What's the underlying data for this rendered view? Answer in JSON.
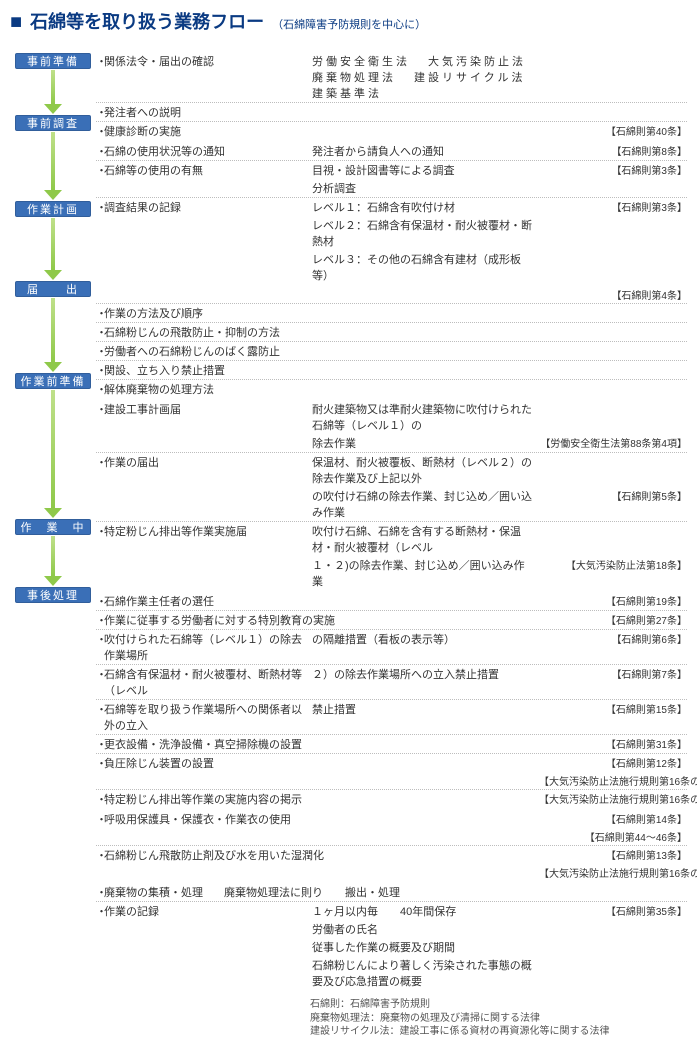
{
  "title": {
    "square": "■",
    "main": "石綿等を取り扱う業務フロー",
    "sub": "（石綿障害予防規則を中心に）"
  },
  "stages": [
    {
      "label": "事前準備",
      "color": "#3a6fb7",
      "arrow_h": 34
    },
    {
      "label": "事前調査",
      "color": "#3a6fb7",
      "arrow_h": 58
    },
    {
      "label": "作業計画",
      "color": "#3a6fb7",
      "arrow_h": 52
    },
    {
      "label": "届　　出",
      "color": "#3a6fb7",
      "arrow_h": 64
    },
    {
      "label": "作業前準備",
      "color": "#3a6fb7",
      "arrow_h": 118
    },
    {
      "label": "作　業　中",
      "color": "#3a6fb7",
      "arrow_h": 40
    },
    {
      "label": "事後処理",
      "color": "#3a6fb7",
      "arrow_h": 0
    }
  ],
  "s0": {
    "r0b": "・",
    "r0l": "関係法令・届出の確認",
    "laws": [
      "労働安全衛生法",
      "大気汚染防止法",
      "廃棄物処理法",
      "建設リサイクル法",
      "建築基準法"
    ],
    "r1b": "・",
    "r1l": "発注者への説明",
    "r2b": "・",
    "r2l": "健康診断の実施",
    "r2r": "【石綿則第40条】"
  },
  "s1": {
    "r0b": "・",
    "r0l": "石綿の使用状況等の通知",
    "r0m": "発注者から請負人への通知",
    "r0r": "【石綿則第8条】",
    "r1b": "・",
    "r1l": "石綿等の使用の有無",
    "r1m": "目視・設計図書等による調査",
    "r1r": "【石綿則第3条】",
    "r2m": "分析調査",
    "r3b": "・",
    "r3l": "調査結果の記録",
    "r3m": "レベル１：石綿含有吹付け材",
    "r3r": "【石綿則第3条】",
    "r4m": "レベル２：石綿含有保温材・耐火被覆材・断熱材",
    "r5m": "レベル３：その他の石綿含有建材（成形板等）"
  },
  "s2": {
    "r0r": "【石綿則第4条】",
    "r1b": "・",
    "r1l": "作業の方法及び順序",
    "r2b": "・",
    "r2l": "石綿粉じんの飛散防止・抑制の方法",
    "r3b": "・",
    "r3l": "労働者への石綿粉じんのばく露防止",
    "r4b": "・",
    "r4l": "関設、立ち入り禁止措置",
    "r5b": "・",
    "r5l": "解体廃棄物の処理方法"
  },
  "s3": {
    "r0b": "・",
    "r0l": "建設工事計画届",
    "r0m": "耐火建築物又は準耐火建築物に吹付けられた石綿等（レベル１）の",
    "r1m": "除去作業",
    "r1r": "【労働安全衛生法第88条第4項】",
    "r2b": "・",
    "r2l": "作業の届出",
    "r2m": "保温材、耐火被覆板、断熱材（レベル２）の除去作業及び上記以外",
    "r3m": "の吹付け石綿の除去作業、封じ込め／囲い込み作業",
    "r3r": "【石綿則第5条】",
    "r4b": "・",
    "r4l": "特定粉じん排出等作業実施届",
    "r4m": "吹付け石綿、石綿を含有する断熱材・保温材・耐火被覆材（レベル",
    "r5m": "１・２)の除去作業、封じ込め／囲い込み作業",
    "r5r": "【大気汚染防止法第18条】"
  },
  "s4": {
    "r0b": "・",
    "r0l": "石綿作業主任者の選任",
    "r0r": "【石綿則第19条】",
    "r1b": "・",
    "r1l": "作業に従事する労働者に対する特別教育の実施",
    "r1r": "【石綿則第27条】",
    "r2b": "・",
    "r2l": "吹付けられた石綿等（レベル１）の除去作業場所",
    "r2m": "の隔離措置（看板の表示等）",
    "r2r": "【石綿則第6条】",
    "r3b": "・",
    "r3l": "石綿含有保温材・耐火被覆材、断熱材等（レベル",
    "r3m": "２）の除去作業場所への立入禁止措置",
    "r3r": "【石綿則第7条】",
    "r4b": "・",
    "r4l": "石綿等を取り扱う作業場所への関係者以外の立入",
    "r4m": "禁止措置",
    "r4r": "【石綿則第15条】",
    "r5b": "・",
    "r5l": "更衣設備・洗浄設備・真空掃除機の設置",
    "r5r": "【石綿則第31条】",
    "r6b": "・",
    "r6l": "負圧除じん装置の設置",
    "r6r": "【石綿則第12条】",
    "r7r": "【大気汚染防止法施行規則第16条の4】",
    "r8b": "・",
    "r8l": "特定粉じん排出等作業の実施内容の掲示",
    "r8r": "【大気汚染防止法施行規則第16条の4】"
  },
  "s5": {
    "r0b": "・",
    "r0l": "呼吸用保護具・保護衣・作業衣の使用",
    "r0r": "【石綿則第14条】",
    "r1r": "【石綿則第44～46条】",
    "r2b": "・",
    "r2l": "石綿粉じん飛散防止剤及び水を用いた湿潤化",
    "r2r": "【石綿則第13条】",
    "r3r": "【大気汚染防止法施行規則第16条の4】"
  },
  "s6": {
    "r0b": "・",
    "r0l": "廃棄物の集積・処理",
    "r0m1": "廃棄物処理法に則り",
    "r0m2": "搬出・処理",
    "r1b": "・",
    "r1l": "作業の記録",
    "r1m": "１ヶ月以内毎　　40年間保存",
    "r1r": "【石綿則第35条】",
    "r2m": "労働者の氏名",
    "r3m": "従事した作業の概要及び期間",
    "r4m": "石綿粉じんにより著しく汚染された事態の概要及び応急措置の概要"
  },
  "footnotes": [
    "石綿則：石綿障害予防規則",
    "廃棄物処理法：廃棄物の処理及び清掃に関する法律",
    "建設リサイクル法：建設工事に係る資材の再資源化等に関する法律"
  ]
}
